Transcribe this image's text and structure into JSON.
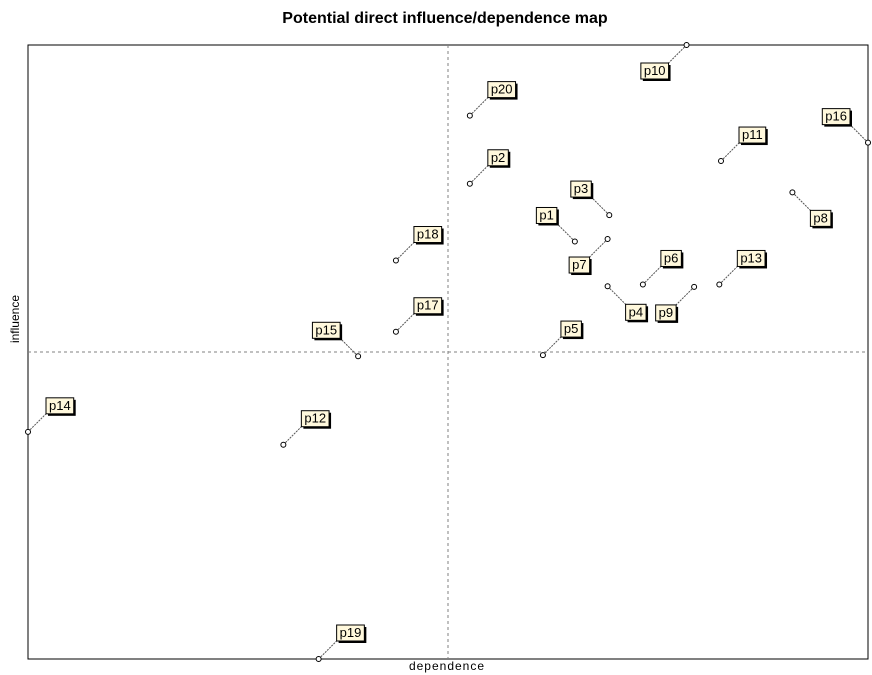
{
  "chart_data": {
    "type": "scatter",
    "title": "Potential direct influence/dependence map",
    "xlabel": "dependence",
    "ylabel": "influence",
    "xlim": [
      0,
      100
    ],
    "ylim": [
      0,
      100
    ],
    "grid": false,
    "reference_lines": {
      "x": 50,
      "y": 50
    },
    "colors": {
      "line": "#000000",
      "label_fill": "#fff8dc",
      "dashed": "#808080"
    },
    "points": [
      {
        "label": "p1",
        "x": 65.1,
        "y": 68.0,
        "label_dir": "nw"
      },
      {
        "label": "p2",
        "x": 52.6,
        "y": 77.4,
        "label_dir": "ne"
      },
      {
        "label": "p3",
        "x": 69.2,
        "y": 72.3,
        "label_dir": "nw"
      },
      {
        "label": "p4",
        "x": 69.0,
        "y": 60.7,
        "label_dir": "se"
      },
      {
        "label": "p5",
        "x": 61.3,
        "y": 49.5,
        "label_dir": "ne"
      },
      {
        "label": "p6",
        "x": 73.2,
        "y": 61.0,
        "label_dir": "ne"
      },
      {
        "label": "p7",
        "x": 69.0,
        "y": 68.4,
        "label_dir": "sw"
      },
      {
        "label": "p8",
        "x": 91.0,
        "y": 76.0,
        "label_dir": "se"
      },
      {
        "label": "p9",
        "x": 79.3,
        "y": 60.6,
        "label_dir": "sw"
      },
      {
        "label": "p10",
        "x": 78.4,
        "y": 100.0,
        "label_dir": "sw"
      },
      {
        "label": "p11",
        "x": 82.5,
        "y": 81.1,
        "label_dir": "ne"
      },
      {
        "label": "p12",
        "x": 30.4,
        "y": 34.9,
        "label_dir": "ne"
      },
      {
        "label": "p13",
        "x": 82.3,
        "y": 61.0,
        "label_dir": "ne"
      },
      {
        "label": "p14",
        "x": 0.0,
        "y": 37.0,
        "label_dir": "ne"
      },
      {
        "label": "p15",
        "x": 39.3,
        "y": 49.3,
        "label_dir": "nw"
      },
      {
        "label": "p16",
        "x": 100.0,
        "y": 84.1,
        "label_dir": "nw"
      },
      {
        "label": "p17",
        "x": 43.8,
        "y": 53.3,
        "label_dir": "ne"
      },
      {
        "label": "p18",
        "x": 43.8,
        "y": 64.9,
        "label_dir": "ne"
      },
      {
        "label": "p19",
        "x": 34.6,
        "y": 0.0,
        "label_dir": "ne"
      },
      {
        "label": "p20",
        "x": 52.6,
        "y": 88.5,
        "label_dir": "ne"
      }
    ]
  }
}
